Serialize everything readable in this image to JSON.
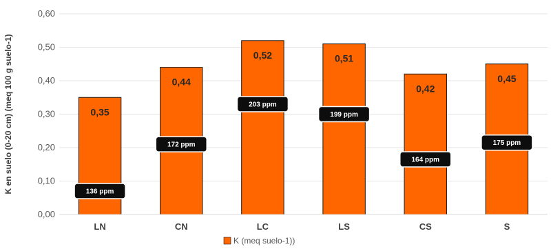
{
  "chart_data": {
    "type": "bar",
    "title": "",
    "xlabel": "",
    "ylabel": "K en suelo (0-20 cm) (meq 100 g suelo-1)",
    "ylim": [
      0,
      0.6
    ],
    "y_ticks": [
      "0,00",
      "0,10",
      "0,20",
      "0,30",
      "0,40",
      "0,50",
      "0,60"
    ],
    "grid": true,
    "legend_position": "bottom",
    "categories": [
      "LN",
      "CN",
      "LC",
      "LS",
      "CS",
      "S"
    ],
    "series": [
      {
        "name": "K (meq  suelo-1))",
        "color": "#FF6600",
        "values": [
          0.35,
          0.44,
          0.52,
          0.51,
          0.42,
          0.45
        ],
        "value_labels": [
          "0,35",
          "0,44",
          "0,52",
          "0,51",
          "0,42",
          "0,45"
        ]
      }
    ],
    "annotations": [
      {
        "text": "136 ppm",
        "y": 0.07
      },
      {
        "text": "172 ppm",
        "y": 0.21
      },
      {
        "text": "203 ppm",
        "y": 0.33
      },
      {
        "text": "199 ppm",
        "y": 0.3
      },
      {
        "text": "164 ppm",
        "y": 0.165
      },
      {
        "text": "175 ppm",
        "y": 0.215
      }
    ]
  }
}
